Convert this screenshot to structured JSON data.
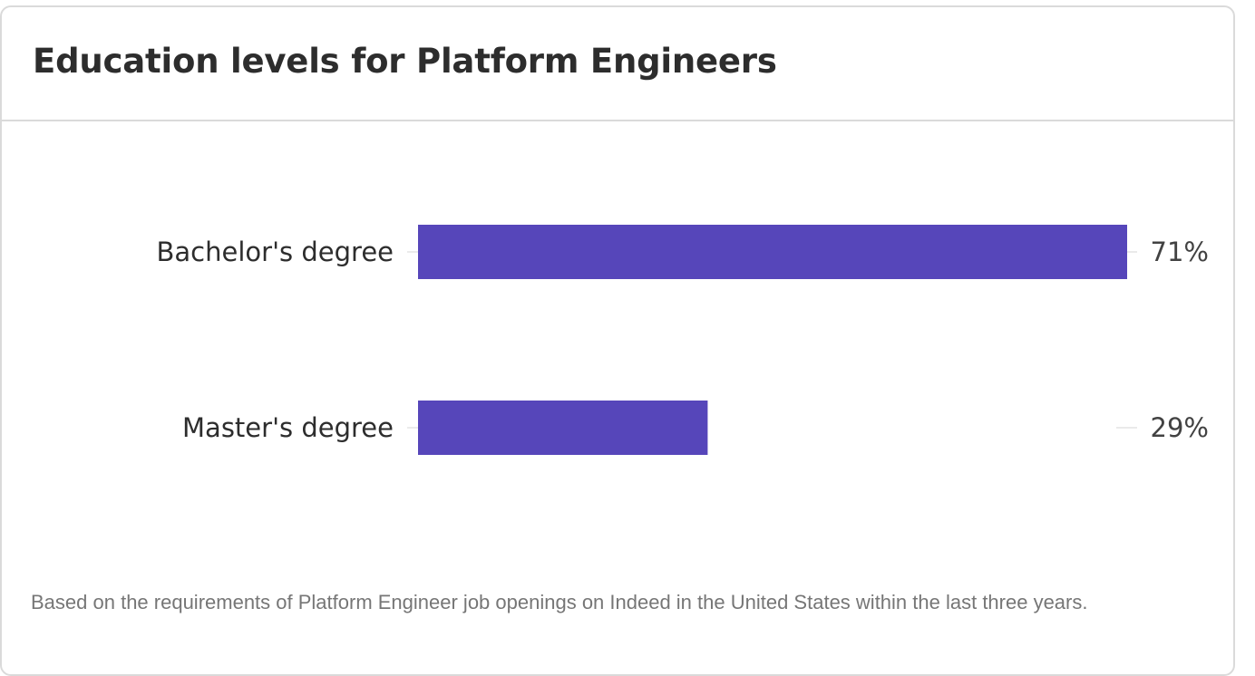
{
  "card": {
    "title": "Education levels for Platform Engineers",
    "footnote": "Based on the requirements of Platform Engineer job openings on Indeed in the United States within the last three years."
  },
  "colors": {
    "bar": "#5646ba",
    "title_text": "#2d2d2d",
    "footnote_text": "#767676",
    "border": "#dadada"
  },
  "chart_data": {
    "type": "bar",
    "orientation": "horizontal",
    "title": "Education levels for Platform Engineers",
    "categories": [
      "Bachelor's degree",
      "Master's degree"
    ],
    "values": [
      71,
      29
    ],
    "value_labels": [
      "71%",
      "29%"
    ],
    "unit": "%",
    "xlim": [
      0,
      71
    ],
    "grid": false,
    "legend": "none"
  }
}
